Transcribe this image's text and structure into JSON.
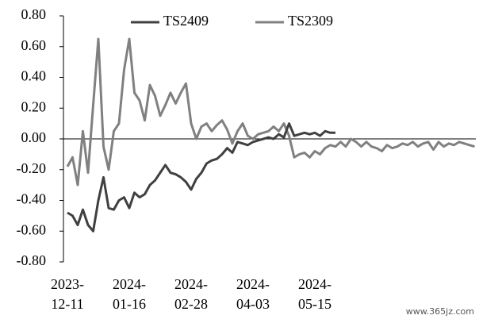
{
  "chart_data": {
    "type": "line",
    "categories": [
      "2023-12-11",
      null,
      null,
      null,
      null,
      null,
      null,
      null,
      null,
      null,
      null,
      null,
      "2024-01-16",
      null,
      null,
      null,
      null,
      null,
      null,
      null,
      null,
      null,
      null,
      null,
      "2024-02-28",
      null,
      null,
      null,
      null,
      null,
      null,
      null,
      null,
      null,
      null,
      null,
      "2024-04-03",
      null,
      null,
      null,
      null,
      null,
      null,
      null,
      null,
      null,
      null,
      null,
      "2024-05-15",
      null,
      null,
      null,
      null,
      null,
      null,
      null,
      null,
      null,
      null,
      null,
      null,
      null,
      null,
      null,
      null,
      null,
      null,
      null,
      null,
      null,
      null,
      null,
      null,
      null,
      null,
      null,
      null,
      null,
      null,
      null
    ],
    "series": [
      {
        "name": "TS2409",
        "color": "#404040",
        "values": [
          -0.48,
          -0.5,
          -0.56,
          -0.46,
          -0.56,
          -0.6,
          -0.4,
          -0.25,
          -0.45,
          -0.46,
          -0.4,
          -0.38,
          -0.45,
          -0.35,
          -0.38,
          -0.36,
          -0.3,
          -0.27,
          -0.22,
          -0.17,
          -0.22,
          -0.23,
          -0.25,
          -0.28,
          -0.33,
          -0.26,
          -0.22,
          -0.16,
          -0.14,
          -0.13,
          -0.1,
          -0.06,
          -0.09,
          -0.02,
          -0.03,
          -0.04,
          -0.02,
          -0.01,
          0.0,
          0.01,
          0.0,
          0.03,
          0.01,
          0.1,
          0.02,
          0.03,
          0.04,
          0.03,
          0.04,
          0.02,
          0.05,
          0.04,
          0.04,
          null,
          null,
          null,
          null,
          null,
          null,
          null,
          null,
          null,
          null,
          null,
          null,
          null,
          null,
          null,
          null,
          null,
          null,
          null,
          null,
          null,
          null,
          null,
          null,
          null,
          null,
          null
        ]
      },
      {
        "name": "TS2309",
        "color": "#808080",
        "values": [
          -0.18,
          -0.12,
          -0.3,
          0.05,
          -0.22,
          0.22,
          0.65,
          -0.05,
          -0.2,
          0.05,
          0.1,
          0.45,
          0.65,
          0.3,
          0.25,
          0.12,
          0.35,
          0.28,
          0.15,
          0.22,
          0.3,
          0.23,
          0.3,
          0.36,
          0.1,
          0.0,
          0.08,
          0.1,
          0.05,
          0.09,
          0.12,
          0.06,
          -0.03,
          0.05,
          0.1,
          0.02,
          0.0,
          0.03,
          0.04,
          0.05,
          0.08,
          0.05,
          0.1,
          0.02,
          -0.12,
          -0.1,
          -0.09,
          -0.12,
          -0.08,
          -0.1,
          -0.06,
          -0.04,
          -0.05,
          -0.02,
          -0.05,
          0.0,
          -0.02,
          -0.05,
          -0.02,
          -0.05,
          -0.06,
          -0.08,
          -0.04,
          -0.06,
          -0.05,
          -0.03,
          -0.04,
          -0.02,
          -0.05,
          -0.03,
          -0.02,
          -0.07,
          -0.02,
          -0.05,
          -0.03,
          -0.04,
          -0.02,
          -0.03,
          -0.04,
          -0.05
        ]
      }
    ],
    "ylim": [
      -0.8,
      0.8
    ],
    "yticks": [
      {
        "value": 0.8,
        "label": "0.80"
      },
      {
        "value": 0.6,
        "label": "0.60"
      },
      {
        "value": 0.4,
        "label": "0.40"
      },
      {
        "value": 0.2,
        "label": "0.20"
      },
      {
        "value": 0,
        "label": "0.00"
      },
      {
        "value": -0.2,
        "label": "-0.20"
      },
      {
        "value": -0.4,
        "label": "-0.40"
      },
      {
        "value": -0.6,
        "label": "-0.60"
      },
      {
        "value": -0.8,
        "label": "-0.80"
      }
    ],
    "grid": false,
    "legend": "top",
    "watermark": "www.365jz.com"
  }
}
